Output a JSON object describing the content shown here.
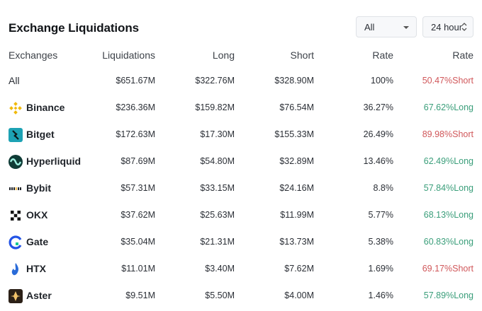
{
  "title": "Exchange Liquidations",
  "filters": {
    "exchange": "All",
    "time_range": "24 hour"
  },
  "columns": [
    "Exchanges",
    "Liquidations",
    "Long",
    "Short",
    "Rate",
    "Rate"
  ],
  "rows": [
    {
      "name": "All",
      "liquidations": "$651.67M",
      "long": "$322.76M",
      "short": "$328.90M",
      "rate": "100%",
      "side_rate": "50.47%Short",
      "side": "short",
      "logo": null
    },
    {
      "name": "Binance",
      "liquidations": "$236.36M",
      "long": "$159.82M",
      "short": "$76.54M",
      "rate": "36.27%",
      "side_rate": "67.62%Long",
      "side": "long",
      "logo": "binance-icon"
    },
    {
      "name": "Bitget",
      "liquidations": "$172.63M",
      "long": "$17.30M",
      "short": "$155.33M",
      "rate": "26.49%",
      "side_rate": "89.98%Short",
      "side": "short",
      "logo": "bitget-icon"
    },
    {
      "name": "Hyperliquid",
      "liquidations": "$87.69M",
      "long": "$54.80M",
      "short": "$32.89M",
      "rate": "13.46%",
      "side_rate": "62.49%Long",
      "side": "long",
      "logo": "hyperliquid-icon"
    },
    {
      "name": "Bybit",
      "liquidations": "$57.31M",
      "long": "$33.15M",
      "short": "$24.16M",
      "rate": "8.8%",
      "side_rate": "57.84%Long",
      "side": "long",
      "logo": "bybit-icon"
    },
    {
      "name": "OKX",
      "liquidations": "$37.62M",
      "long": "$25.63M",
      "short": "$11.99M",
      "rate": "5.77%",
      "side_rate": "68.13%Long",
      "side": "long",
      "logo": "okx-icon"
    },
    {
      "name": "Gate",
      "liquidations": "$35.04M",
      "long": "$21.31M",
      "short": "$13.73M",
      "rate": "5.38%",
      "side_rate": "60.83%Long",
      "side": "long",
      "logo": "gate-icon"
    },
    {
      "name": "HTX",
      "liquidations": "$11.01M",
      "long": "$3.40M",
      "short": "$7.62M",
      "rate": "1.69%",
      "side_rate": "69.17%Short",
      "side": "short",
      "logo": "htx-icon"
    },
    {
      "name": "Aster",
      "liquidations": "$9.51M",
      "long": "$5.50M",
      "short": "$4.00M",
      "rate": "1.46%",
      "side_rate": "57.89%Long",
      "side": "long",
      "logo": "aster-icon"
    }
  ],
  "colors": {
    "short": "#d0575a",
    "long": "#3a9e7a",
    "binance": "#f0b90b",
    "bitget": "#1da2b4",
    "hyperliquid": "#0f3b36",
    "htx": "#2a6bd8",
    "gate": "#2354e6"
  }
}
